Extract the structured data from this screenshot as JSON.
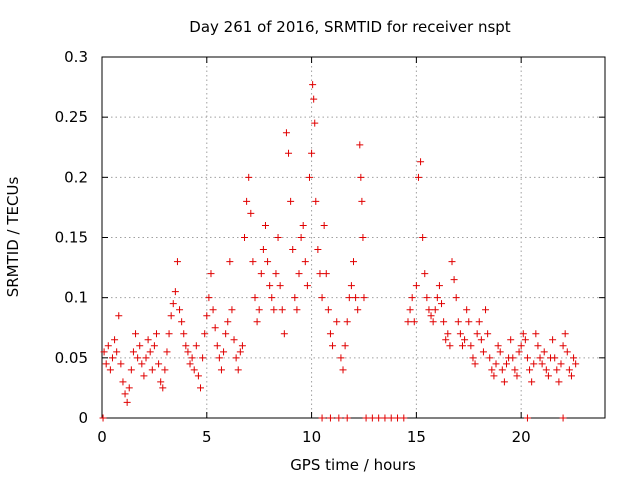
{
  "chart_data": {
    "type": "scatter",
    "title": "Day 261 of 2016, SRMTID for receiver nspt",
    "xlabel": "GPS time / hours",
    "ylabel": "SRMTID / TECUs",
    "xlim": [
      0,
      24
    ],
    "ylim": [
      0,
      0.3
    ],
    "x_ticks": [
      0,
      5,
      10,
      15,
      20
    ],
    "x_tick_labels": [
      "0",
      "5",
      "10",
      "15",
      "20"
    ],
    "y_ticks": [
      0,
      0.05,
      0.1,
      0.15,
      0.2,
      0.25,
      0.3
    ],
    "y_tick_labels": [
      "0",
      "0.05",
      "0.1",
      "0.15",
      "0.2",
      "0.25",
      "0.3"
    ],
    "grid": true,
    "marker": "plus",
    "color": "#e00000",
    "series": [
      {
        "name": "SRMTID",
        "points": [
          [
            0.05,
            0.0
          ],
          [
            0.1,
            0.055
          ],
          [
            0.2,
            0.045
          ],
          [
            0.3,
            0.06
          ],
          [
            0.4,
            0.04
          ],
          [
            0.5,
            0.05
          ],
          [
            0.6,
            0.065
          ],
          [
            0.7,
            0.055
          ],
          [
            0.8,
            0.085
          ],
          [
            0.9,
            0.045
          ],
          [
            1.0,
            0.03
          ],
          [
            1.1,
            0.02
          ],
          [
            1.2,
            0.013
          ],
          [
            1.3,
            0.025
          ],
          [
            1.4,
            0.04
          ],
          [
            1.5,
            0.055
          ],
          [
            1.6,
            0.07
          ],
          [
            1.7,
            0.05
          ],
          [
            1.8,
            0.06
          ],
          [
            1.9,
            0.045
          ],
          [
            2.0,
            0.035
          ],
          [
            2.1,
            0.05
          ],
          [
            2.2,
            0.065
          ],
          [
            2.3,
            0.055
          ],
          [
            2.4,
            0.04
          ],
          [
            2.5,
            0.06
          ],
          [
            2.6,
            0.07
          ],
          [
            2.7,
            0.045
          ],
          [
            2.8,
            0.03
          ],
          [
            2.9,
            0.025
          ],
          [
            3.0,
            0.04
          ],
          [
            3.1,
            0.055
          ],
          [
            3.2,
            0.07
          ],
          [
            3.3,
            0.085
          ],
          [
            3.4,
            0.095
          ],
          [
            3.5,
            0.105
          ],
          [
            3.6,
            0.13
          ],
          [
            3.7,
            0.09
          ],
          [
            3.8,
            0.08
          ],
          [
            3.9,
            0.07
          ],
          [
            4.0,
            0.06
          ],
          [
            4.1,
            0.055
          ],
          [
            4.2,
            0.045
          ],
          [
            4.3,
            0.05
          ],
          [
            4.4,
            0.04
          ],
          [
            4.5,
            0.06
          ],
          [
            4.6,
            0.035
          ],
          [
            4.7,
            0.025
          ],
          [
            4.8,
            0.05
          ],
          [
            4.9,
            0.07
          ],
          [
            5.0,
            0.085
          ],
          [
            5.1,
            0.1
          ],
          [
            5.2,
            0.12
          ],
          [
            5.3,
            0.09
          ],
          [
            5.4,
            0.075
          ],
          [
            5.5,
            0.06
          ],
          [
            5.6,
            0.05
          ],
          [
            5.7,
            0.04
          ],
          [
            5.8,
            0.055
          ],
          [
            5.9,
            0.07
          ],
          [
            6.0,
            0.08
          ],
          [
            6.1,
            0.13
          ],
          [
            6.2,
            0.09
          ],
          [
            6.3,
            0.065
          ],
          [
            6.4,
            0.05
          ],
          [
            6.5,
            0.04
          ],
          [
            6.6,
            0.055
          ],
          [
            6.7,
            0.06
          ],
          [
            6.8,
            0.15
          ],
          [
            6.9,
            0.18
          ],
          [
            7.0,
            0.2
          ],
          [
            7.1,
            0.17
          ],
          [
            7.2,
            0.13
          ],
          [
            7.3,
            0.1
          ],
          [
            7.4,
            0.08
          ],
          [
            7.5,
            0.09
          ],
          [
            7.6,
            0.12
          ],
          [
            7.7,
            0.14
          ],
          [
            7.8,
            0.16
          ],
          [
            7.9,
            0.13
          ],
          [
            8.0,
            0.11
          ],
          [
            8.1,
            0.1
          ],
          [
            8.2,
            0.09
          ],
          [
            8.3,
            0.12
          ],
          [
            8.4,
            0.15
          ],
          [
            8.5,
            0.11
          ],
          [
            8.6,
            0.09
          ],
          [
            8.7,
            0.07
          ],
          [
            8.8,
            0.237
          ],
          [
            8.9,
            0.22
          ],
          [
            9.0,
            0.18
          ],
          [
            9.1,
            0.14
          ],
          [
            9.2,
            0.1
          ],
          [
            9.3,
            0.09
          ],
          [
            9.4,
            0.12
          ],
          [
            9.5,
            0.15
          ],
          [
            9.6,
            0.16
          ],
          [
            9.7,
            0.13
          ],
          [
            9.8,
            0.11
          ],
          [
            9.9,
            0.2
          ],
          [
            10.0,
            0.22
          ],
          [
            10.05,
            0.277
          ],
          [
            10.1,
            0.265
          ],
          [
            10.15,
            0.245
          ],
          [
            10.2,
            0.18
          ],
          [
            10.3,
            0.14
          ],
          [
            10.4,
            0.12
          ],
          [
            10.5,
            0.1
          ],
          [
            10.6,
            0.16
          ],
          [
            10.7,
            0.12
          ],
          [
            10.8,
            0.09
          ],
          [
            10.9,
            0.07
          ],
          [
            11.0,
            0.06
          ],
          [
            11.2,
            0.08
          ],
          [
            11.4,
            0.05
          ],
          [
            11.5,
            0.04
          ],
          [
            11.6,
            0.06
          ],
          [
            11.7,
            0.08
          ],
          [
            11.8,
            0.1
          ],
          [
            11.9,
            0.11
          ],
          [
            12.0,
            0.13
          ],
          [
            12.1,
            0.1
          ],
          [
            12.2,
            0.09
          ],
          [
            12.3,
            0.227
          ],
          [
            12.35,
            0.2
          ],
          [
            12.4,
            0.18
          ],
          [
            12.45,
            0.15
          ],
          [
            12.5,
            0.1
          ],
          [
            14.6,
            0.08
          ],
          [
            14.7,
            0.09
          ],
          [
            14.8,
            0.1
          ],
          [
            14.9,
            0.08
          ],
          [
            15.0,
            0.11
          ],
          [
            15.1,
            0.2
          ],
          [
            15.2,
            0.213
          ],
          [
            15.3,
            0.15
          ],
          [
            15.4,
            0.12
          ],
          [
            15.5,
            0.1
          ],
          [
            15.6,
            0.09
          ],
          [
            15.7,
            0.085
          ],
          [
            15.8,
            0.08
          ],
          [
            15.9,
            0.09
          ],
          [
            16.0,
            0.1
          ],
          [
            16.1,
            0.11
          ],
          [
            16.2,
            0.095
          ],
          [
            16.3,
            0.08
          ],
          [
            16.4,
            0.065
          ],
          [
            16.5,
            0.07
          ],
          [
            16.6,
            0.06
          ],
          [
            16.7,
            0.13
          ],
          [
            16.8,
            0.115
          ],
          [
            16.9,
            0.1
          ],
          [
            17.0,
            0.08
          ],
          [
            17.1,
            0.07
          ],
          [
            17.2,
            0.06
          ],
          [
            17.3,
            0.065
          ],
          [
            17.4,
            0.09
          ],
          [
            17.5,
            0.08
          ],
          [
            17.6,
            0.06
          ],
          [
            17.7,
            0.05
          ],
          [
            17.8,
            0.045
          ],
          [
            17.9,
            0.07
          ],
          [
            18.0,
            0.08
          ],
          [
            18.1,
            0.065
          ],
          [
            18.2,
            0.055
          ],
          [
            18.3,
            0.09
          ],
          [
            18.4,
            0.07
          ],
          [
            18.5,
            0.05
          ],
          [
            18.6,
            0.04
          ],
          [
            18.7,
            0.035
          ],
          [
            18.8,
            0.045
          ],
          [
            18.9,
            0.06
          ],
          [
            19.0,
            0.055
          ],
          [
            19.1,
            0.04
          ],
          [
            19.2,
            0.03
          ],
          [
            19.3,
            0.045
          ],
          [
            19.4,
            0.05
          ],
          [
            19.5,
            0.065
          ],
          [
            19.6,
            0.05
          ],
          [
            19.7,
            0.04
          ],
          [
            19.8,
            0.035
          ],
          [
            19.9,
            0.055
          ],
          [
            20.0,
            0.06
          ],
          [
            20.1,
            0.07
          ],
          [
            20.2,
            0.065
          ],
          [
            20.3,
            0.05
          ],
          [
            20.4,
            0.04
          ],
          [
            20.5,
            0.03
          ],
          [
            20.6,
            0.045
          ],
          [
            20.7,
            0.07
          ],
          [
            20.8,
            0.06
          ],
          [
            20.9,
            0.05
          ],
          [
            21.0,
            0.045
          ],
          [
            21.1,
            0.055
          ],
          [
            21.2,
            0.04
          ],
          [
            21.3,
            0.035
          ],
          [
            21.4,
            0.05
          ],
          [
            21.5,
            0.065
          ],
          [
            21.6,
            0.05
          ],
          [
            21.7,
            0.04
          ],
          [
            21.8,
            0.03
          ],
          [
            21.9,
            0.045
          ],
          [
            22.0,
            0.06
          ],
          [
            22.1,
            0.07
          ],
          [
            22.2,
            0.055
          ],
          [
            22.3,
            0.04
          ],
          [
            22.4,
            0.035
          ],
          [
            22.5,
            0.05
          ],
          [
            22.6,
            0.045
          ],
          [
            10.5,
            0.0
          ],
          [
            10.9,
            0.0
          ],
          [
            11.3,
            0.0
          ],
          [
            11.7,
            0.0
          ],
          [
            12.6,
            0.0
          ],
          [
            12.9,
            0.0
          ],
          [
            13.2,
            0.0
          ],
          [
            13.5,
            0.0
          ],
          [
            13.8,
            0.0
          ],
          [
            14.1,
            0.0
          ],
          [
            14.4,
            0.0
          ],
          [
            20.3,
            0.0
          ],
          [
            22.0,
            0.0
          ]
        ]
      }
    ]
  }
}
